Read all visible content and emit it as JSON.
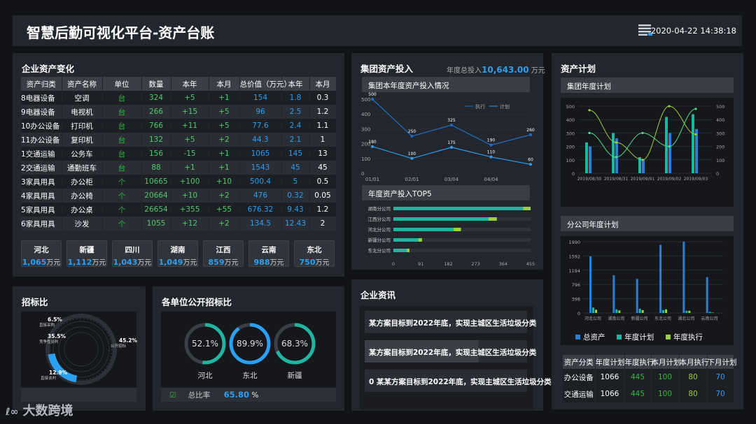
{
  "header": {
    "title": "智慧后勤可视化平台-资产台账",
    "datetime": "2020-04-22 14:38:18"
  },
  "asset_change": {
    "title": "企业资产变化",
    "columns": [
      "资产归类",
      "资产名称",
      "单位",
      "数量",
      "本年",
      "本月",
      "总价值（万元）",
      "本年",
      "本月"
    ],
    "rows": [
      [
        "8",
        "电器设备",
        "空调",
        "台",
        "324",
        "+5",
        "+1",
        "154",
        "1.8",
        "0.3"
      ],
      [
        "9",
        "电器设备",
        "电视机",
        "台",
        "266",
        "+15",
        "+5",
        "96",
        "2.5",
        "1.2"
      ],
      [
        "10",
        "办公设备",
        "打印机",
        "台",
        "766",
        "+11",
        "+5",
        "77.6",
        "2.4",
        "1.1"
      ],
      [
        "11",
        "办公设备",
        "复印机",
        "台",
        "132",
        "+5",
        "+2",
        "44.3",
        "2.1",
        "1"
      ],
      [
        "1",
        "交通运输",
        "公务车",
        "台",
        "156",
        "-15",
        "+1",
        "1065",
        "145",
        "13"
      ],
      [
        "2",
        "交通运输",
        "通勤班车",
        "台",
        "88",
        "+1",
        "+1",
        "1543",
        "45",
        "45"
      ],
      [
        "3",
        "家具用具",
        "办公柜",
        "个",
        "10665",
        "+100",
        "+10",
        "500.4",
        "5",
        "0.5"
      ],
      [
        "4",
        "家具用具",
        "办公椅",
        "个",
        "20664",
        "+10",
        "+2",
        "476",
        "0.32",
        "0.05"
      ],
      [
        "5",
        "家具用具",
        "办公桌",
        "个",
        "26654",
        "+355",
        "+55",
        "676.32",
        "9.43",
        "1.2"
      ],
      [
        "6",
        "家具用具",
        "沙发",
        "个",
        "1055",
        "+12",
        "+2",
        "134.5",
        "12.43",
        "2"
      ]
    ],
    "regions": [
      {
        "name": "河北",
        "value": "1,065",
        "unit": "万元"
      },
      {
        "name": "新疆",
        "value": "1,112",
        "unit": "万元"
      },
      {
        "name": "四川",
        "value": "1,043",
        "unit": "万元"
      },
      {
        "name": "湖南",
        "value": "1,049",
        "unit": "万元"
      },
      {
        "name": "江西",
        "value": "859",
        "unit": "万元"
      },
      {
        "name": "云南",
        "value": "988",
        "unit": "万元"
      },
      {
        "name": "东北",
        "value": "750",
        "unit": "万元"
      }
    ]
  },
  "group_investment": {
    "title": "集团资产投入",
    "total_label": "年度总投入",
    "total_value": "10,643.00",
    "total_unit": "万元",
    "line_subtitle": "集团本年度资产投入情况",
    "bar_subtitle": "年度资产投入TOP5"
  },
  "plan": {
    "title": "资产计划",
    "group_subtitle": "集团年度计划",
    "branch_subtitle": "分公司年度计划",
    "legend": [
      "总资产",
      "年度计划",
      "年度执行"
    ],
    "table": {
      "columns": [
        "资产分类",
        "年度计划",
        "年度执行",
        "本月计划",
        "本月执行",
        "下月计划"
      ],
      "rows": [
        [
          "办公设备",
          "1066",
          "445",
          "100",
          "80",
          "70"
        ],
        [
          "交通运输",
          "1066",
          "445",
          "100",
          "80",
          "70"
        ]
      ]
    }
  },
  "bid_ratio": {
    "title": "招标比"
  },
  "open_bid": {
    "title": "各单位公开招标比",
    "rings": [
      {
        "value": "52.1%",
        "name": "河北",
        "pct": 52.1
      },
      {
        "value": "89.9%",
        "name": "东北",
        "pct": 89.9
      },
      {
        "value": "68.3%",
        "name": "新疆",
        "pct": 68.3
      }
    ],
    "total_label": "总比率",
    "total_value": "65.80",
    "total_unit": "%"
  },
  "news": {
    "title": "企业资讯",
    "items": [
      "某方案目标到2022年底，实现主城区生活垃圾分类",
      "某方案目标到2022年底，实现主城区生活垃圾分类",
      "0 某某方案目标到2022年底，实现主城区生活垃圾分类"
    ]
  },
  "watermark": "大数跨境",
  "colors": {
    "accent": "#2b9ff2",
    "green": "#2fbd3a",
    "teal": "#1fb5a0",
    "lime": "#9bd23c",
    "panel": "#23262c"
  },
  "chart_data": [
    {
      "type": "line",
      "title": "集团本年度资产投入情况",
      "x": [
        "01/01",
        "02/01",
        "03/04",
        "04/04",
        ""
      ],
      "ylim": [
        0,
        500
      ],
      "series": [
        {
          "name": "执行",
          "values": [
            500,
            250,
            325,
            190,
            260
          ]
        },
        {
          "name": "计划",
          "values": [
            180,
            100,
            175,
            110,
            60
          ]
        }
      ]
    },
    {
      "type": "bar",
      "orientation": "horizontal",
      "title": "年度资产投入TOP5",
      "categories": [
        "湖南分公司",
        "江西分公司",
        "河北分公司",
        "新疆分公司",
        "东北分公司"
      ],
      "xlim": [
        0,
        455
      ],
      "xticks": [
        0,
        91,
        182,
        273,
        364,
        455
      ],
      "series": [
        {
          "name": "base",
          "values": [
            430,
            315,
            200,
            83,
            45
          ]
        },
        {
          "name": "extra",
          "values": [
            25,
            28,
            24,
            12,
            8
          ]
        }
      ]
    },
    {
      "type": "bar",
      "title": "集团年度计划",
      "categories": [
        "2019/08/30",
        "2019/08/31",
        "2019/09/01",
        "2019/09/02",
        "2019/09/03"
      ],
      "ylim": [
        0,
        500
      ],
      "series": [
        {
          "name": "a",
          "values": [
            230,
            300,
            120,
            420,
            440
          ]
        },
        {
          "name": "b",
          "values": [
            200,
            260,
            100,
            300,
            330
          ]
        }
      ],
      "lines": [
        {
          "name": "l1",
          "values": [
            470,
            230,
            100,
            500,
            290
          ]
        },
        {
          "name": "l2",
          "values": [
            300,
            120,
            300,
            200,
            480
          ]
        }
      ]
    },
    {
      "type": "bar",
      "title": "分公司年度计划",
      "categories": [
        "河北公司",
        "湖南公司",
        "新疆公司",
        "东北公司",
        "湖北公司",
        "云南公司"
      ],
      "ylim": [
        0,
        1990
      ],
      "yticks": [
        0,
        398,
        796,
        1194,
        1592,
        1990
      ],
      "series": [
        {
          "name": "总资产",
          "values": [
            1580,
            1050,
            950,
            1900,
            2000,
            1000
          ]
        },
        {
          "name": "年度计划",
          "values": [
            150,
            100,
            120,
            80,
            60,
            30
          ]
        },
        {
          "name": "年度执行",
          "values": [
            90,
            70,
            80,
            100,
            60,
            10
          ]
        }
      ]
    },
    {
      "type": "pie",
      "title": "招标比",
      "slices": [
        {
          "label": "直接采购",
          "value": 6.5
        },
        {
          "label": "竞争性谈判",
          "value": 35.5
        },
        {
          "label": "公开招标",
          "value": 45.2
        },
        {
          "label": "直接谈判",
          "value": 12.9
        }
      ]
    }
  ]
}
